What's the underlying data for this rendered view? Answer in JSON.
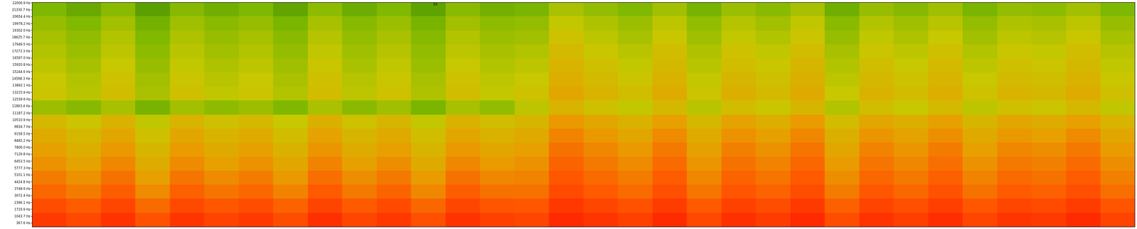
{
  "chart_data": {
    "type": "heatmap",
    "xlim": [
      0,
      41
    ],
    "ylim": [
      0,
      22050
    ],
    "tick_labels": "y",
    "value_range": [
      0,
      100
    ],
    "annotations": [
      {
        "text": "15",
        "x": 15
      }
    ],
    "yticks": [
      {
        "value": 22006.9,
        "label": "22006.9 Hz"
      },
      {
        "value": 21330.7,
        "label": "21330.7 Hz"
      },
      {
        "value": 20654.4,
        "label": "20654.4 Hz"
      },
      {
        "value": 19978.2,
        "label": "19978.2 Hz"
      },
      {
        "value": 19302.0,
        "label": "19302.0 Hz"
      },
      {
        "value": 18625.7,
        "label": "18625.7 Hz"
      },
      {
        "value": 17949.5,
        "label": "17949.5 Hz"
      },
      {
        "value": 17273.3,
        "label": "17273.3 Hz"
      },
      {
        "value": 16597.0,
        "label": "16597.0 Hz"
      },
      {
        "value": 15920.8,
        "label": "15920.8 Hz"
      },
      {
        "value": 15244.6,
        "label": "15244.6 Hz"
      },
      {
        "value": 14568.3,
        "label": "14568.3 Hz"
      },
      {
        "value": 13892.1,
        "label": "13892.1 Hz"
      },
      {
        "value": 13215.9,
        "label": "13215.9 Hz"
      },
      {
        "value": 12539.6,
        "label": "12539.6 Hz"
      },
      {
        "value": 11863.4,
        "label": "11863.4 Hz"
      },
      {
        "value": 11187.2,
        "label": "11187.2 Hz"
      },
      {
        "value": 10510.9,
        "label": "10510.9 Hz"
      },
      {
        "value": 9834.7,
        "label": "9834.7 Hz"
      },
      {
        "value": 9158.5,
        "label": "9158.5 Hz"
      },
      {
        "value": 8482.2,
        "label": "8482.2 Hz"
      },
      {
        "value": 7806.0,
        "label": "7806.0 Hz"
      },
      {
        "value": 7129.8,
        "label": "7129.8 Hz"
      },
      {
        "value": 6453.5,
        "label": "6453.5 Hz"
      },
      {
        "value": 5777.3,
        "label": "5777.3 Hz"
      },
      {
        "value": 5101.1,
        "label": "5101.1 Hz"
      },
      {
        "value": 4424.8,
        "label": "4424.8 Hz"
      },
      {
        "value": 3748.6,
        "label": "3748.6 Hz"
      },
      {
        "value": 3072.4,
        "label": "3072.4 Hz"
      },
      {
        "value": 2396.1,
        "label": "2396.1 Hz"
      },
      {
        "value": 1719.9,
        "label": "1719.9 Hz"
      },
      {
        "value": 1043.7,
        "label": "1043.7 Hz"
      },
      {
        "value": 367.6,
        "label": "367.6 Hz"
      }
    ],
    "cells": [
      [
        93,
        87,
        96,
        83,
        95,
        89,
        93,
        85,
        97,
        88,
        94,
        84,
        96,
        90,
        88,
        100,
        95,
        90,
        99,
        87,
        97,
        92,
        100,
        85,
        96,
        91,
        98,
        88,
        95,
        93,
        99,
        89
      ],
      [
        85,
        79,
        88,
        75,
        87,
        81,
        85,
        77,
        89,
        80,
        86,
        76,
        88,
        82,
        81,
        94,
        88,
        83,
        92,
        80,
        90,
        85,
        93,
        78,
        89,
        84,
        91,
        81,
        88,
        86,
        92,
        82
      ],
      [
        76,
        70,
        79,
        66,
        78,
        72,
        76,
        68,
        80,
        71,
        77,
        67,
        79,
        73,
        73,
        86,
        80,
        75,
        84,
        72,
        82,
        77,
        85,
        70,
        81,
        76,
        83,
        73,
        80,
        78,
        84,
        74
      ],
      [
        70,
        64,
        73,
        60,
        72,
        66,
        70,
        62,
        74,
        65,
        71,
        61,
        73,
        67,
        68,
        81,
        75,
        70,
        79,
        67,
        77,
        72,
        80,
        65,
        76,
        71,
        78,
        68,
        75,
        73,
        79,
        69
      ],
      [
        64,
        58,
        67,
        54,
        66,
        60,
        64,
        56,
        68,
        59,
        65,
        55,
        67,
        61,
        64,
        77,
        71,
        66,
        75,
        63,
        73,
        68,
        76,
        61,
        72,
        67,
        74,
        64,
        71,
        69,
        75,
        65
      ],
      [
        59,
        53,
        62,
        49,
        61,
        55,
        59,
        51,
        63,
        54,
        60,
        50,
        62,
        56,
        60,
        73,
        67,
        62,
        71,
        59,
        69,
        64,
        72,
        57,
        68,
        63,
        70,
        60,
        67,
        65,
        71,
        61
      ],
      [
        54,
        48,
        57,
        44,
        56,
        50,
        54,
        46,
        58,
        49,
        55,
        45,
        57,
        51,
        55,
        68,
        62,
        57,
        66,
        54,
        64,
        59,
        67,
        52,
        63,
        58,
        65,
        55,
        62,
        60,
        66,
        56
      ],
      [
        48,
        42,
        51,
        38,
        50,
        44,
        48,
        40,
        52,
        43,
        49,
        39,
        51,
        45,
        49,
        62,
        56,
        51,
        60,
        48,
        58,
        53,
        61,
        46,
        57,
        52,
        59,
        49,
        56,
        54,
        60,
        50
      ],
      [
        28,
        22,
        31,
        18,
        30,
        24,
        28,
        20,
        32,
        23,
        29,
        19,
        31,
        25,
        37,
        50,
        44,
        39,
        48,
        36,
        46,
        41,
        49,
        34,
        45,
        40,
        47,
        37,
        44,
        42,
        48,
        38
      ],
      [
        42,
        36,
        45,
        32,
        44,
        38,
        42,
        34,
        46,
        37,
        43,
        33,
        45,
        39,
        43,
        56,
        50,
        45,
        54,
        42,
        52,
        47,
        55,
        40,
        51,
        46,
        53,
        43,
        50,
        48,
        54,
        44
      ],
      [
        40,
        34,
        43,
        30,
        42,
        36,
        40,
        32,
        44,
        35,
        41,
        31,
        43,
        37,
        40,
        53,
        47,
        42,
        51,
        39,
        49,
        44,
        52,
        37,
        48,
        43,
        50,
        40,
        47,
        45,
        51,
        41
      ],
      [
        37,
        31,
        40,
        27,
        39,
        33,
        37,
        29,
        41,
        32,
        38,
        28,
        40,
        34,
        37,
        50,
        44,
        39,
        48,
        36,
        46,
        41,
        49,
        34,
        45,
        40,
        47,
        37,
        44,
        42,
        48,
        38
      ],
      [
        34,
        28,
        37,
        24,
        36,
        30,
        34,
        26,
        38,
        29,
        35,
        25,
        37,
        31,
        34,
        47,
        41,
        36,
        45,
        33,
        43,
        38,
        46,
        31,
        42,
        37,
        44,
        34,
        41,
        39,
        45,
        35
      ],
      [
        31,
        25,
        34,
        21,
        33,
        27,
        31,
        23,
        35,
        26,
        32,
        22,
        34,
        28,
        30,
        43,
        37,
        32,
        41,
        29,
        39,
        34,
        42,
        27,
        38,
        33,
        40,
        30,
        37,
        35,
        41,
        31
      ],
      [
        27,
        21,
        30,
        17,
        29,
        23,
        27,
        19,
        31,
        22,
        28,
        18,
        30,
        24,
        26,
        39,
        33,
        28,
        37,
        25,
        35,
        30,
        38,
        23,
        34,
        29,
        36,
        26,
        33,
        31,
        37,
        27
      ],
      [
        20,
        14,
        23,
        10,
        22,
        16,
        20,
        12,
        24,
        15,
        21,
        11,
        23,
        17,
        19,
        32,
        26,
        21,
        30,
        18,
        28,
        23,
        31,
        16,
        27,
        22,
        29,
        19,
        26,
        24,
        30,
        20
      ]
    ]
  }
}
